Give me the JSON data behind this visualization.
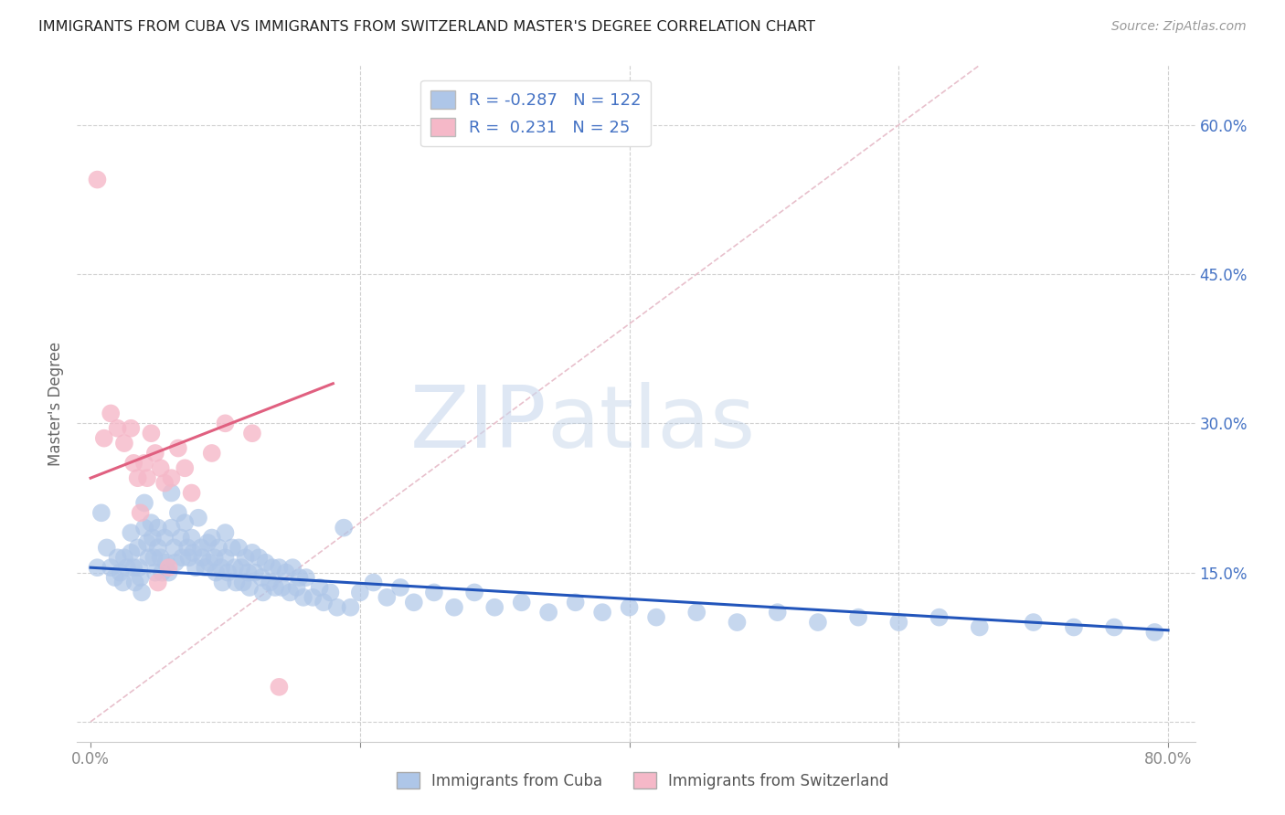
{
  "title": "IMMIGRANTS FROM CUBA VS IMMIGRANTS FROM SWITZERLAND MASTER'S DEGREE CORRELATION CHART",
  "source": "Source: ZipAtlas.com",
  "ylabel": "Master's Degree",
  "xlim": [
    -0.01,
    0.82
  ],
  "ylim": [
    -0.02,
    0.66
  ],
  "x_ticks": [
    0.0,
    0.2,
    0.4,
    0.6,
    0.8
  ],
  "x_tick_labels": [
    "0.0%",
    "",
    "",
    "",
    "80.0%"
  ],
  "y_ticks": [
    0.0,
    0.15,
    0.3,
    0.45,
    0.6
  ],
  "y_tick_labels": [
    "",
    "15.0%",
    "30.0%",
    "45.0%",
    "60.0%"
  ],
  "cuba_color": "#aec6e8",
  "cuba_color_line": "#2255bb",
  "switzerland_color": "#f5b8c8",
  "switzerland_color_line": "#e06080",
  "cuba_R": -0.287,
  "cuba_N": 122,
  "switzerland_R": 0.231,
  "switzerland_N": 25,
  "background_color": "#ffffff",
  "grid_color": "#d0d0d0",
  "watermark_zip": "ZIP",
  "watermark_atlas": "atlas",
  "legend_label_cuba": "Immigrants from Cuba",
  "legend_label_switzerland": "Immigrants from Switzerland",
  "cuba_x": [
    0.005,
    0.008,
    0.012,
    0.015,
    0.018,
    0.02,
    0.022,
    0.024,
    0.025,
    0.027,
    0.03,
    0.03,
    0.032,
    0.033,
    0.035,
    0.036,
    0.037,
    0.038,
    0.04,
    0.04,
    0.042,
    0.043,
    0.045,
    0.046,
    0.047,
    0.048,
    0.05,
    0.05,
    0.052,
    0.053,
    0.055,
    0.056,
    0.058,
    0.06,
    0.06,
    0.062,
    0.063,
    0.065,
    0.067,
    0.068,
    0.07,
    0.072,
    0.073,
    0.075,
    0.076,
    0.078,
    0.08,
    0.082,
    0.083,
    0.085,
    0.087,
    0.088,
    0.09,
    0.092,
    0.093,
    0.095,
    0.097,
    0.098,
    0.1,
    0.1,
    0.102,
    0.105,
    0.107,
    0.108,
    0.11,
    0.112,
    0.113,
    0.115,
    0.117,
    0.118,
    0.12,
    0.122,
    0.125,
    0.127,
    0.128,
    0.13,
    0.133,
    0.135,
    0.137,
    0.14,
    0.142,
    0.145,
    0.148,
    0.15,
    0.153,
    0.155,
    0.158,
    0.16,
    0.165,
    0.17,
    0.173,
    0.178,
    0.183,
    0.188,
    0.193,
    0.2,
    0.21,
    0.22,
    0.23,
    0.24,
    0.255,
    0.27,
    0.285,
    0.3,
    0.32,
    0.34,
    0.36,
    0.38,
    0.4,
    0.42,
    0.45,
    0.48,
    0.51,
    0.54,
    0.57,
    0.6,
    0.63,
    0.66,
    0.7,
    0.73,
    0.76,
    0.79
  ],
  "cuba_y": [
    0.155,
    0.21,
    0.175,
    0.155,
    0.145,
    0.165,
    0.15,
    0.14,
    0.165,
    0.155,
    0.19,
    0.17,
    0.155,
    0.14,
    0.175,
    0.155,
    0.145,
    0.13,
    0.22,
    0.195,
    0.18,
    0.165,
    0.2,
    0.185,
    0.165,
    0.15,
    0.195,
    0.175,
    0.165,
    0.15,
    0.185,
    0.16,
    0.15,
    0.23,
    0.195,
    0.175,
    0.16,
    0.21,
    0.185,
    0.165,
    0.2,
    0.175,
    0.165,
    0.185,
    0.17,
    0.155,
    0.205,
    0.175,
    0.165,
    0.155,
    0.18,
    0.16,
    0.185,
    0.165,
    0.15,
    0.175,
    0.155,
    0.14,
    0.19,
    0.165,
    0.15,
    0.175,
    0.155,
    0.14,
    0.175,
    0.155,
    0.14,
    0.165,
    0.15,
    0.135,
    0.17,
    0.15,
    0.165,
    0.145,
    0.13,
    0.16,
    0.14,
    0.155,
    0.135,
    0.155,
    0.135,
    0.15,
    0.13,
    0.155,
    0.135,
    0.145,
    0.125,
    0.145,
    0.125,
    0.135,
    0.12,
    0.13,
    0.115,
    0.195,
    0.115,
    0.13,
    0.14,
    0.125,
    0.135,
    0.12,
    0.13,
    0.115,
    0.13,
    0.115,
    0.12,
    0.11,
    0.12,
    0.11,
    0.115,
    0.105,
    0.11,
    0.1,
    0.11,
    0.1,
    0.105,
    0.1,
    0.105,
    0.095,
    0.1,
    0.095,
    0.095,
    0.09
  ],
  "swiss_x": [
    0.005,
    0.01,
    0.015,
    0.02,
    0.025,
    0.03,
    0.032,
    0.035,
    0.037,
    0.04,
    0.042,
    0.045,
    0.048,
    0.05,
    0.052,
    0.055,
    0.058,
    0.06,
    0.065,
    0.07,
    0.075,
    0.09,
    0.1,
    0.12,
    0.14
  ],
  "swiss_y": [
    0.545,
    0.285,
    0.31,
    0.295,
    0.28,
    0.295,
    0.26,
    0.245,
    0.21,
    0.26,
    0.245,
    0.29,
    0.27,
    0.14,
    0.255,
    0.24,
    0.155,
    0.245,
    0.275,
    0.255,
    0.23,
    0.27,
    0.3,
    0.29,
    0.035
  ],
  "diag_line_color": "#e8c0cc",
  "trend_line_start_y_cuba": 0.155,
  "trend_line_end_y_cuba": 0.092,
  "trend_line_start_y_swiss": 0.245,
  "trend_line_end_y_swiss": 0.34
}
